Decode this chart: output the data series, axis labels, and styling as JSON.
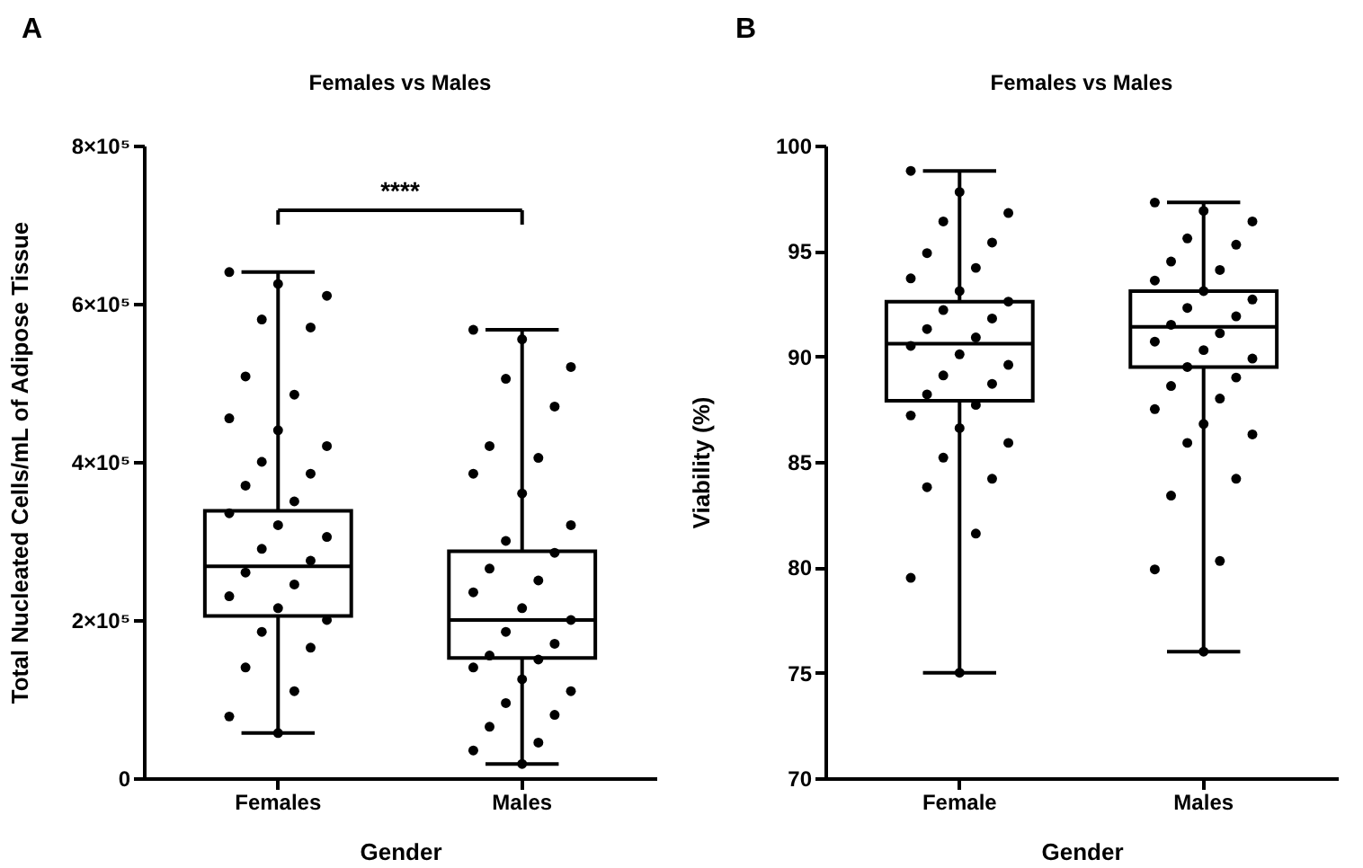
{
  "chart_data": [
    {
      "type": "box",
      "title": "Females vs Males",
      "xlabel": "Gender",
      "ylabel": "Total Nucleated Cells/mL of Adipose Tissue",
      "annotations": [
        "A",
        "****"
      ],
      "categories": [
        "Females",
        "Males"
      ],
      "ylim": [
        0,
        800000
      ],
      "yticks": [
        0,
        {
          "value": 200000,
          "label": "2×10⁵"
        },
        {
          "value": 400000,
          "label": "4×10⁵"
        },
        {
          "value": 600000,
          "label": "6×10⁵"
        },
        {
          "value": 800000,
          "label": "8×10⁵"
        }
      ],
      "boxes": [
        {
          "low": 57000,
          "q1": 205000,
          "median": 268000,
          "q3": 338000,
          "high": 640000
        },
        {
          "low": 18000,
          "q1": 152000,
          "median": 200000,
          "q3": 287000,
          "high": 567000
        }
      ],
      "series": [
        {
          "type": "scatter",
          "color": "#000000",
          "x": [
            "Females",
            "Females",
            "Females",
            "Females",
            "Females",
            "Females",
            "Females",
            "Females",
            "Females",
            "Females",
            "Females",
            "Females",
            "Females",
            "Females",
            "Females",
            "Females",
            "Females",
            "Females",
            "Females",
            "Females",
            "Females",
            "Females",
            "Females",
            "Females",
            "Females",
            "Females",
            "Females",
            "Females",
            "Females",
            "Females"
          ],
          "values": [
            640000,
            625000,
            610000,
            580000,
            570000,
            508000,
            485000,
            455000,
            440000,
            420000,
            400000,
            385000,
            370000,
            350000,
            335000,
            320000,
            305000,
            290000,
            275000,
            260000,
            245000,
            230000,
            215000,
            200000,
            185000,
            165000,
            140000,
            110000,
            78000,
            57000
          ]
        },
        {
          "type": "scatter",
          "color": "#000000",
          "x": [
            "Males",
            "Males",
            "Males",
            "Males",
            "Males",
            "Males",
            "Males",
            "Males",
            "Males",
            "Males",
            "Males",
            "Males",
            "Males",
            "Males",
            "Males",
            "Males",
            "Males",
            "Males",
            "Males",
            "Males",
            "Males",
            "Males",
            "Males",
            "Males",
            "Males",
            "Males",
            "Males",
            "Males",
            "Males",
            "Males"
          ],
          "values": [
            567000,
            555000,
            520000,
            505000,
            470000,
            420000,
            405000,
            385000,
            360000,
            320000,
            300000,
            285000,
            265000,
            250000,
            235000,
            215000,
            200000,
            185000,
            170000,
            155000,
            150000,
            140000,
            125000,
            110000,
            95000,
            80000,
            65000,
            45000,
            35000,
            18000
          ]
        }
      ],
      "marker": "circle",
      "grid": false
    },
    {
      "type": "box",
      "title": "Females vs Males",
      "xlabel": "Gender",
      "ylabel": "Viability (%)",
      "annotations": [
        "B"
      ],
      "categories": [
        "Female",
        "Males"
      ],
      "ylim": [
        70,
        100
      ],
      "yticks": [
        70,
        75,
        80,
        85,
        90,
        95,
        100
      ],
      "boxes": [
        {
          "low": 75.0,
          "q1": 87.9,
          "median": 90.6,
          "q3": 92.6,
          "high": 98.8
        },
        {
          "low": 76.0,
          "q1": 89.5,
          "median": 91.4,
          "q3": 93.1,
          "high": 97.3
        }
      ],
      "series": [
        {
          "type": "scatter",
          "color": "#000000",
          "x": [
            "Female",
            "Female",
            "Female",
            "Female",
            "Female",
            "Female",
            "Female",
            "Female",
            "Female",
            "Female",
            "Female",
            "Female",
            "Female",
            "Female",
            "Female",
            "Female",
            "Female",
            "Female",
            "Female",
            "Female",
            "Female",
            "Female",
            "Female",
            "Female",
            "Female",
            "Female",
            "Female",
            "Female",
            "Female",
            "Female"
          ],
          "values": [
            98.8,
            97.8,
            96.8,
            96.4,
            95.4,
            94.9,
            94.2,
            93.7,
            93.1,
            92.6,
            92.2,
            91.8,
            91.3,
            90.9,
            90.5,
            90.1,
            89.6,
            89.1,
            88.7,
            88.2,
            87.7,
            87.2,
            86.6,
            85.9,
            85.2,
            84.2,
            83.8,
            81.6,
            79.5,
            75.0
          ]
        },
        {
          "type": "scatter",
          "color": "#000000",
          "x": [
            "Males",
            "Males",
            "Males",
            "Males",
            "Males",
            "Males",
            "Males",
            "Males",
            "Males",
            "Males",
            "Males",
            "Males",
            "Males",
            "Males",
            "Males",
            "Males",
            "Males",
            "Males",
            "Males",
            "Males",
            "Males",
            "Males",
            "Males",
            "Males",
            "Males",
            "Males",
            "Males",
            "Males",
            "Males",
            "Males"
          ],
          "values": [
            97.3,
            96.9,
            96.4,
            95.6,
            95.3,
            94.5,
            94.1,
            93.6,
            93.1,
            92.7,
            92.3,
            91.9,
            91.5,
            91.1,
            90.7,
            90.3,
            89.9,
            89.5,
            89.0,
            88.6,
            88.0,
            87.5,
            86.8,
            86.3,
            85.9,
            84.2,
            83.4,
            80.3,
            79.9,
            76.0
          ]
        }
      ],
      "marker": "circle",
      "grid": false
    }
  ]
}
